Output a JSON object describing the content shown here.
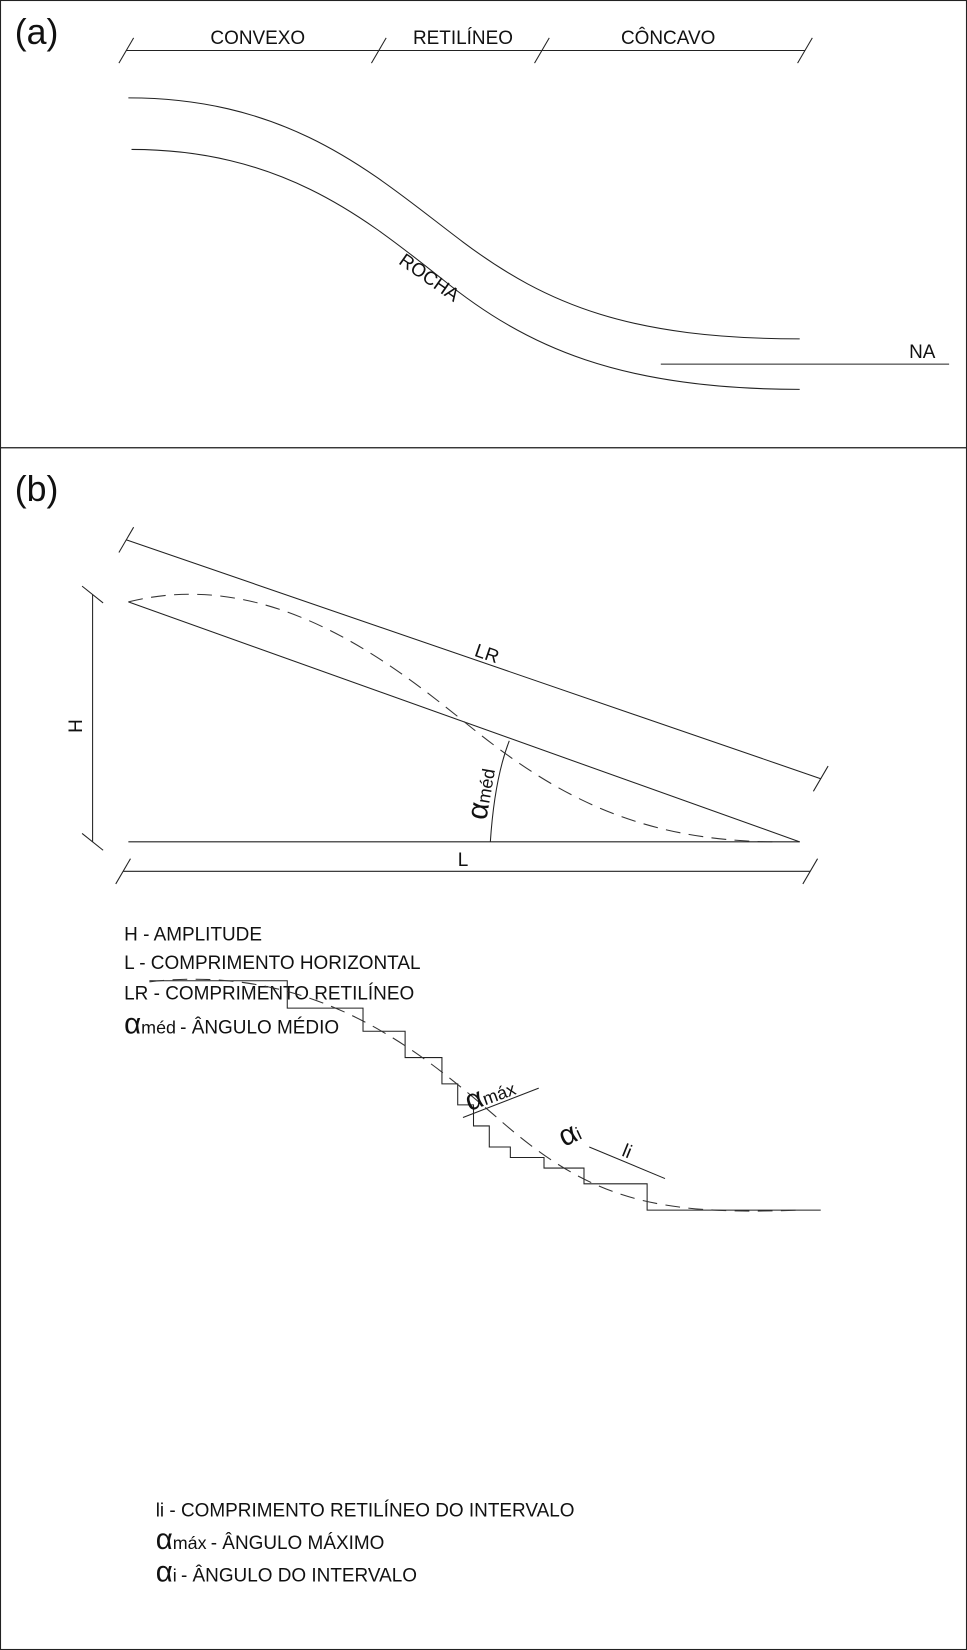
{
  "panel_a": {
    "label": "(a)",
    "segments": [
      "CONVEXO",
      "RETILÍNEO",
      "CÔNCAVO"
    ],
    "rock_label": "ROCHA",
    "water_label": "NA"
  },
  "panel_b": {
    "label": "(b)",
    "dimensions": {
      "h": "H",
      "l": "L",
      "lr": "LR",
      "angle_symbol": "α",
      "angle_sub": "méd"
    },
    "legend_1": [
      {
        "text": "H - AMPLITUDE"
      },
      {
        "text": "L - COMPRIMENTO HORIZONTAL"
      },
      {
        "text": "LR - COMPRIMENTO RETILÍNEO"
      },
      {
        "symbol": "α",
        "sub": "méd",
        "text": "- ÂNGULO MÉDIO"
      }
    ],
    "steps": {
      "max_symbol": "α",
      "max_sub": "máx",
      "i_symbol": "α",
      "i_sub": "i",
      "li": "li"
    },
    "legend_2": [
      {
        "text": "li - COMPRIMENTO RETILÍNEO DO INTERVALO"
      },
      {
        "symbol": "α",
        "sub": "máx",
        "text": "- ÂNGULO MÁXIMO"
      },
      {
        "symbol": "α",
        "sub": "i",
        "text": "- ÂNGULO DO INTERVALO"
      }
    ]
  }
}
